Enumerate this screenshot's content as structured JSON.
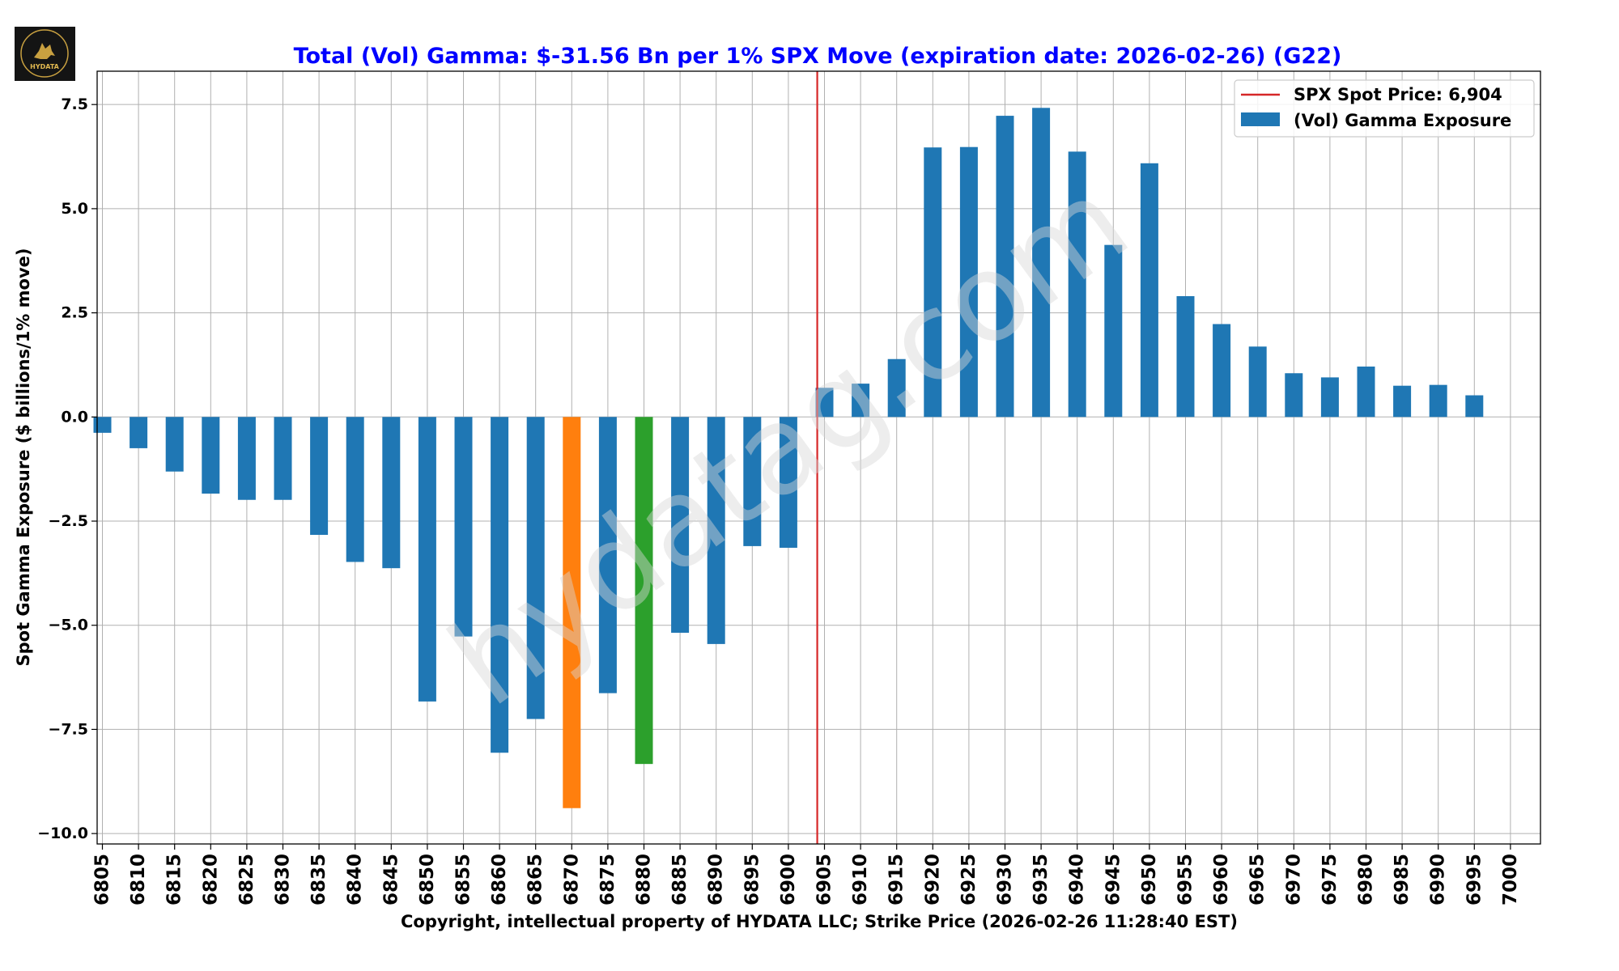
{
  "logo": {
    "text": "HYDATA"
  },
  "watermark": "hydatag.com",
  "chart_data": {
    "type": "bar",
    "title": "Total (Vol) Gamma: $-31.56 Bn per 1% SPX Move (expiration date: 2026-02-26) (G22)",
    "xlabel": "Copyright, intellectual property of HYDATA LLC; Strike Price (2026-02-26 11:28:40 EST)",
    "ylabel": "Spot Gamma Exposure ($ billions/1% move)",
    "ylim": [
      -10.25,
      8.3
    ],
    "yticks": [
      7.5,
      5.0,
      2.5,
      0.0,
      -2.5,
      -5.0,
      -7.5,
      -10.0
    ],
    "ytick_labels": [
      "7.5",
      "5.0",
      "2.5",
      "0.0",
      "−2.5",
      "−5.0",
      "−7.5",
      "−10.0"
    ],
    "categories": [
      "6805",
      "6810",
      "6815",
      "6820",
      "6825",
      "6830",
      "6835",
      "6840",
      "6845",
      "6850",
      "6855",
      "6860",
      "6865",
      "6870",
      "6875",
      "6880",
      "6885",
      "6890",
      "6895",
      "6900",
      "6905",
      "6910",
      "6915",
      "6920",
      "6925",
      "6930",
      "6935",
      "6940",
      "6945",
      "6950",
      "6955",
      "6960",
      "6965",
      "6970",
      "6975",
      "6980",
      "6985",
      "6990",
      "6995",
      "7000"
    ],
    "values": [
      -0.38,
      -0.75,
      -1.31,
      -1.84,
      -1.99,
      -1.99,
      -2.83,
      -3.48,
      -3.63,
      -6.83,
      -5.27,
      -8.06,
      -7.25,
      -9.39,
      -6.63,
      -8.33,
      -5.18,
      -5.45,
      -3.1,
      -3.14,
      0.7,
      0.8,
      1.39,
      6.47,
      6.48,
      7.23,
      7.42,
      6.37,
      4.13,
      6.09,
      2.9,
      2.23,
      1.69,
      1.05,
      0.95,
      1.21,
      0.75,
      0.77,
      0.52,
      0
    ],
    "highlights": {
      "6870": "#ff7f0e",
      "6880": "#2ca02c"
    },
    "bar_color": "#1f77b4",
    "spot_line": {
      "value": 6904,
      "color": "#d62728"
    },
    "legend": {
      "position": "top-right",
      "entries": [
        "SPX Spot Price: 6,904",
        "(Vol) Gamma Exposure"
      ]
    },
    "title_color": "#0000ff",
    "grid": true
  }
}
